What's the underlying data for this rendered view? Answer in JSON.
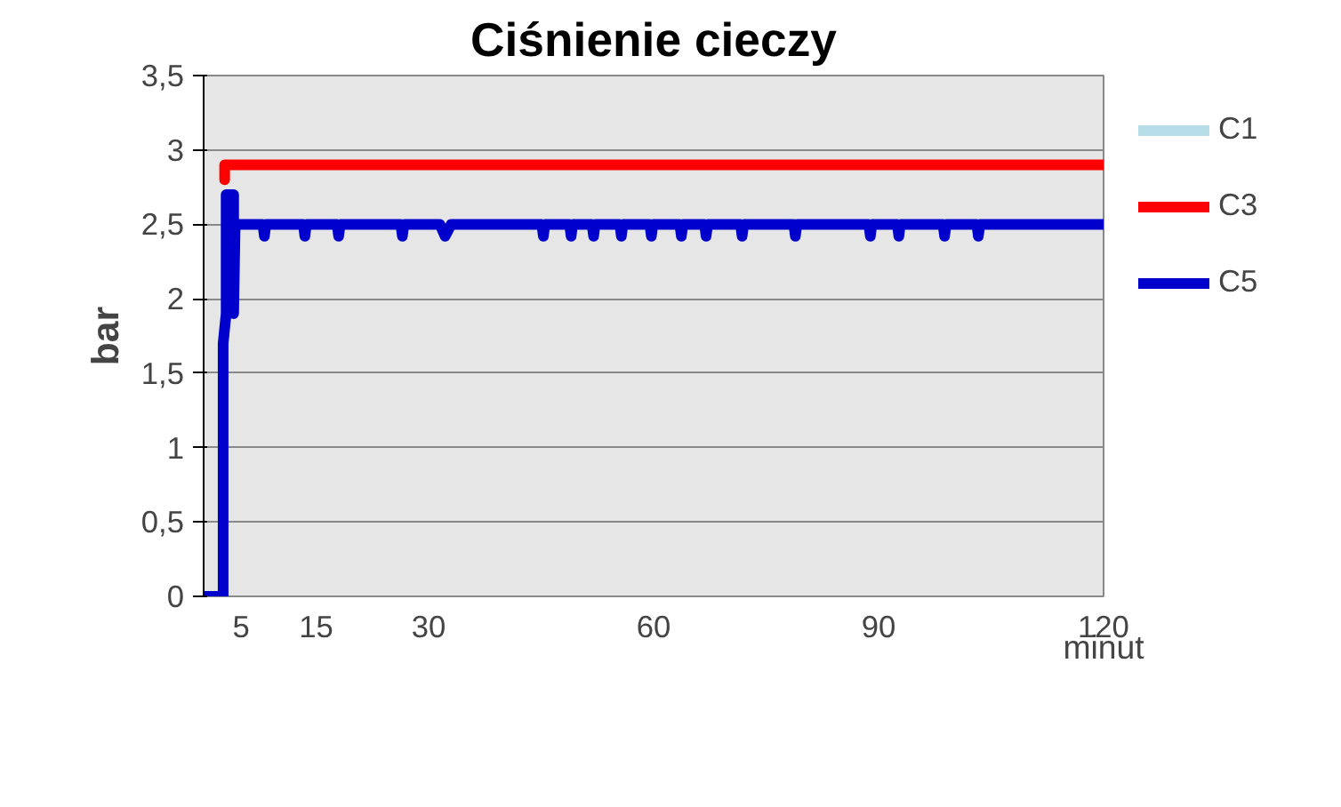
{
  "chart_data": {
    "type": "line",
    "title": "Ciśnienie cieczy",
    "xlabel": "minut",
    "ylabel": "bar",
    "xlim": [
      0,
      120
    ],
    "xticks": [
      5,
      15,
      30,
      60,
      90,
      120
    ],
    "ylim": [
      0,
      3.5
    ],
    "yticks": [
      0,
      {
        "value": 0.5,
        "label": "0,5"
      },
      1,
      {
        "value": 1.5,
        "label": "1,5"
      },
      2,
      {
        "value": 2.5,
        "label": "2,5"
      },
      3,
      {
        "value": 3.5,
        "label": "3,5"
      }
    ],
    "grid": "y",
    "legend": "right",
    "line_style": "solid",
    "series": [
      {
        "name": "C1",
        "color": "#b7dde8",
        "values": [
          null
        ]
      },
      {
        "name": "C3",
        "color": "#ff0000",
        "x": [
          2.8,
          2.8,
          120
        ],
        "values": [
          2.8,
          2.9,
          2.9
        ]
      },
      {
        "name": "C5",
        "color": "#0000cc",
        "x": [
          0,
          2.6,
          2.6,
          3,
          3,
          4,
          4,
          4.2,
          7.9,
          8.1,
          8.3,
          13.3,
          13.5,
          13.7,
          17.8,
          18,
          18.2,
          26.3,
          26.5,
          26.7,
          31.5,
          32.2,
          33,
          45.1,
          45.3,
          45.5,
          48.8,
          49,
          49.2,
          51.8,
          52,
          52.2,
          55.5,
          55.7,
          55.9,
          59.5,
          59.7,
          59.9,
          63.5,
          63.7,
          63.9,
          66.8,
          67,
          67.2,
          71.6,
          71.8,
          72,
          78.7,
          78.9,
          79.1,
          88.7,
          88.9,
          89.1,
          92.5,
          92.7,
          92.9,
          98.6,
          98.8,
          99,
          103.1,
          103.3,
          103.5,
          120
        ],
        "values": [
          0,
          0,
          1.7,
          1.9,
          2.7,
          2.7,
          1.9,
          2.5,
          2.5,
          2.42,
          2.5,
          2.5,
          2.42,
          2.5,
          2.5,
          2.42,
          2.5,
          2.5,
          2.42,
          2.5,
          2.5,
          2.42,
          2.5,
          2.5,
          2.42,
          2.5,
          2.5,
          2.42,
          2.5,
          2.5,
          2.42,
          2.5,
          2.5,
          2.42,
          2.5,
          2.5,
          2.42,
          2.5,
          2.5,
          2.42,
          2.5,
          2.5,
          2.42,
          2.5,
          2.5,
          2.42,
          2.5,
          2.5,
          2.42,
          2.5,
          2.5,
          2.42,
          2.5,
          2.5,
          2.42,
          2.5,
          2.5,
          2.42,
          2.5,
          2.5,
          2.42,
          2.5,
          2.5
        ]
      }
    ]
  }
}
